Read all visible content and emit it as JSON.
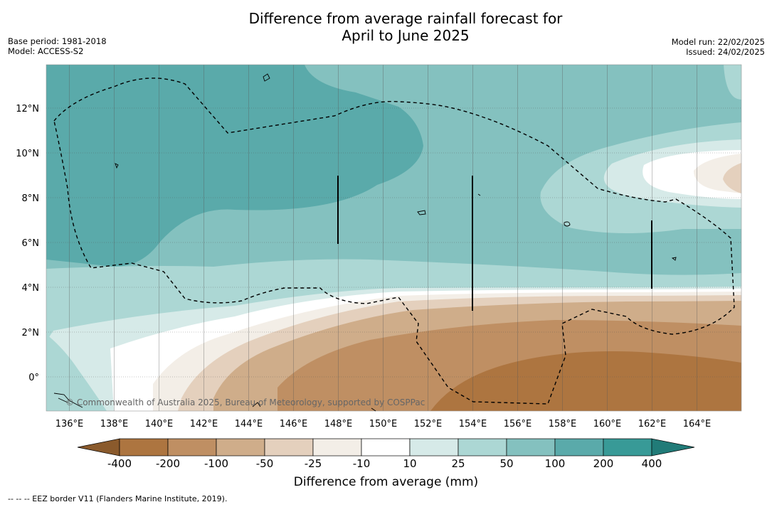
{
  "header": {
    "title_line1": "Difference from average rainfall forecast for",
    "title_line2": "April to June 2025",
    "base_period": "Base period: 1981-2018",
    "model": "Model: ACCESS-S2",
    "model_run": "Model run: 22/02/2025",
    "issued": "Issued: 24/02/2025"
  },
  "map": {
    "lon_labels": [
      "136°E",
      "138°E",
      "140°E",
      "142°E",
      "144°E",
      "146°E",
      "148°E",
      "150°E",
      "152°E",
      "154°E",
      "156°E",
      "158°E",
      "160°E",
      "162°E",
      "164°E"
    ],
    "lat_labels": [
      "12°N",
      "10°N",
      "8°N",
      "6°N",
      "4°N",
      "2°N",
      "0°"
    ],
    "credit": "© Commonwealth of Australia 2025, Bureau of Meteorology, supported by COSPPac"
  },
  "colorbar": {
    "title": "Difference from average (mm)",
    "labels": [
      "-400",
      "-200",
      "-100",
      "-50",
      "-25",
      "-10",
      "10",
      "25",
      "50",
      "100",
      "200",
      "400"
    ],
    "colors": [
      "#8a5a2c",
      "#ad7540",
      "#bf8f63",
      "#cfad8a",
      "#e4d0bd",
      "#f3eee7",
      "#ffffff",
      "#d6eae8",
      "#acd7d4",
      "#84c1bf",
      "#5aaaaa",
      "#389a97",
      "#217b78"
    ]
  },
  "footnote": "--  --  -- EEZ border V11 (Flanders Marine Institute, 2019)."
}
